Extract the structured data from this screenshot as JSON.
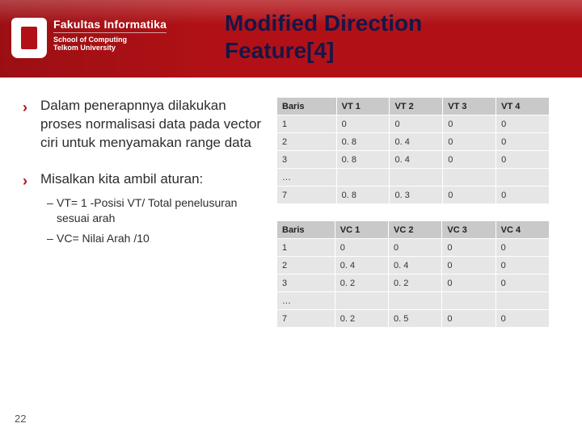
{
  "header": {
    "logo_line1": "Fakultas Informatika",
    "logo_line2": "School of Computing",
    "logo_line3": "Telkom University",
    "title_line1": "Modified Direction",
    "title_line2": "Feature[4]"
  },
  "bullets": [
    {
      "text": "Dalam penerapnnya dilakukan proses normalisasi data pada vector ciri untuk menyamakan range data"
    },
    {
      "text": "Misalkan kita ambil aturan:",
      "subs": [
        "VT= 1 -Posisi VT/ Total penelusuran sesuai arah",
        "VC= Nilai Arah /10"
      ]
    }
  ],
  "table1": {
    "headers": [
      "Baris",
      "VT 1",
      "VT 2",
      "VT 3",
      "VT 4"
    ],
    "rows": [
      [
        "1",
        "0",
        "0",
        "0",
        "0"
      ],
      [
        "2",
        "0. 8",
        "0. 4",
        "0",
        "0"
      ],
      [
        "3",
        "0. 8",
        "0. 4",
        "0",
        "0"
      ],
      [
        "…",
        "",
        "",
        "",
        ""
      ],
      [
        "7",
        "0. 8",
        "0. 3",
        "0",
        "0"
      ]
    ]
  },
  "table2": {
    "headers": [
      "Baris",
      "VC 1",
      "VC 2",
      "VC 3",
      "VC 4"
    ],
    "rows": [
      [
        "1",
        "0",
        "0",
        "0",
        "0"
      ],
      [
        "2",
        "0. 4",
        "0. 4",
        "0",
        "0"
      ],
      [
        "3",
        "0. 2",
        "0. 2",
        "0",
        "0"
      ],
      [
        "…",
        "",
        "",
        "",
        ""
      ],
      [
        "7",
        "0. 2",
        "0. 5",
        "0",
        "0"
      ]
    ]
  },
  "slide_number": "22",
  "colors": {
    "banner": "#b11116",
    "title_text": "#161648",
    "th_bg": "#c9c9c9",
    "td_bg": "#e6e6e6"
  }
}
